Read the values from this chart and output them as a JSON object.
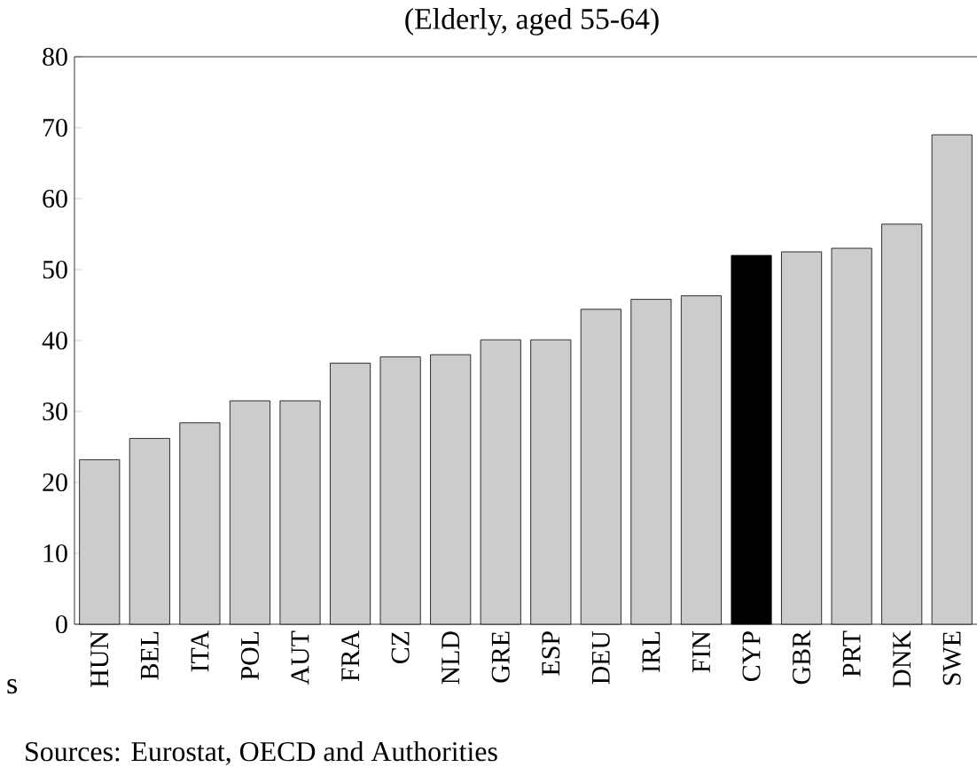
{
  "chart_data": {
    "type": "bar",
    "subtitle": "(Elderly, aged 55-64)",
    "categories": [
      "HUN",
      "BEL",
      "ITA",
      "POL",
      "AUT",
      "FRA",
      "CZ",
      "NLD",
      "GRE",
      "ESP",
      "DEU",
      "IRL",
      "FIN",
      "CYP",
      "GBR",
      "PRT",
      "DNK",
      "SWE"
    ],
    "values": [
      23.2,
      26.2,
      28.4,
      31.5,
      31.5,
      36.8,
      37.7,
      38,
      40.1,
      40.1,
      44.4,
      45.8,
      46.3,
      52,
      52.5,
      53,
      56.4,
      69
    ],
    "colors": [
      "#cccccc",
      "#cccccc",
      "#cccccc",
      "#cccccc",
      "#cccccc",
      "#cccccc",
      "#cccccc",
      "#cccccc",
      "#cccccc",
      "#cccccc",
      "#cccccc",
      "#cccccc",
      "#cccccc",
      "#000000",
      "#cccccc",
      "#cccccc",
      "#cccccc",
      "#cccccc"
    ],
    "ylim": [
      0,
      80
    ],
    "yticks": [
      0,
      10,
      20,
      30,
      40,
      50,
      60,
      70,
      80
    ],
    "grid": false,
    "annotations": [
      "s",
      "Sources: Eurostat, OECD and Authorities"
    ]
  }
}
